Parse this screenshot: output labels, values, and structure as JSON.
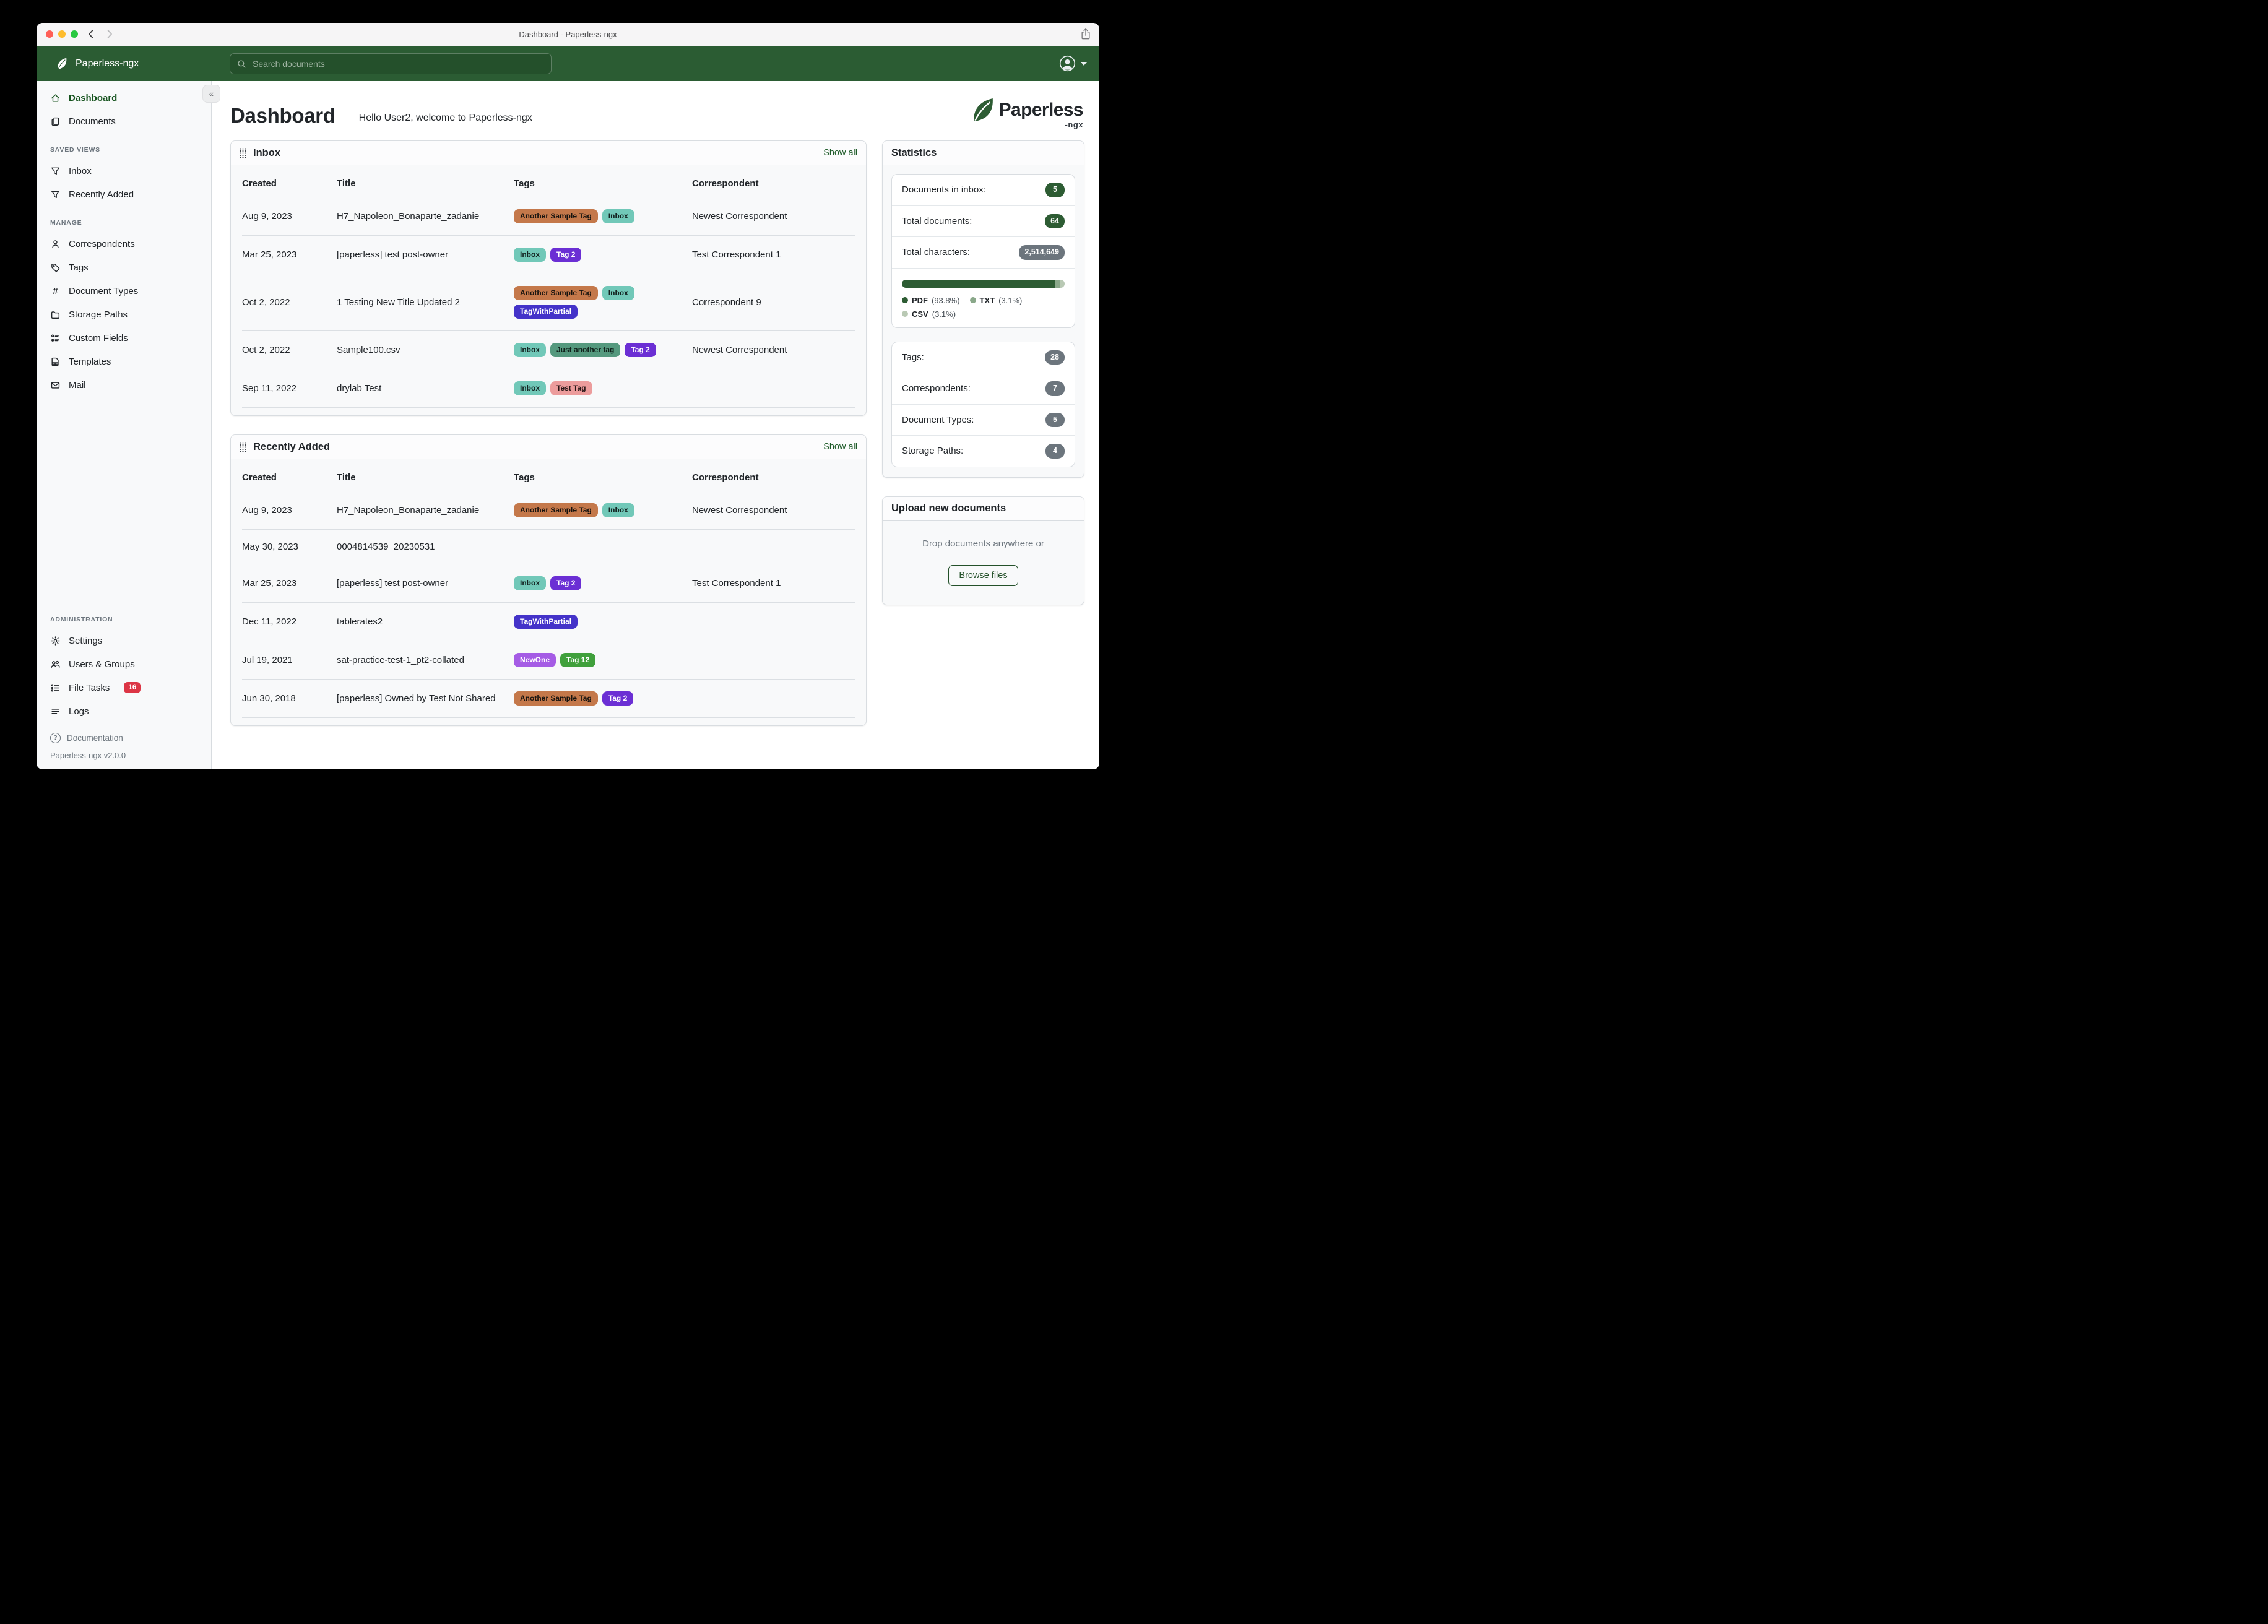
{
  "window": {
    "title": "Dashboard - Paperless-ngx"
  },
  "header": {
    "brand": "Paperless-ngx",
    "search_placeholder": "Search documents"
  },
  "sidebar": {
    "top_items": [
      {
        "label": "Dashboard",
        "icon": "home",
        "active": true
      },
      {
        "label": "Documents",
        "icon": "documents",
        "active": false
      }
    ],
    "sections": [
      {
        "label": "SAVED VIEWS",
        "items": [
          {
            "label": "Inbox",
            "icon": "funnel"
          },
          {
            "label": "Recently Added",
            "icon": "funnel"
          }
        ]
      },
      {
        "label": "MANAGE",
        "items": [
          {
            "label": "Correspondents",
            "icon": "person"
          },
          {
            "label": "Tags",
            "icon": "tag"
          },
          {
            "label": "Document Types",
            "icon": "hash"
          },
          {
            "label": "Storage Paths",
            "icon": "folder"
          },
          {
            "label": "Custom Fields",
            "icon": "fields"
          },
          {
            "label": "Templates",
            "icon": "template"
          },
          {
            "label": "Mail",
            "icon": "mail"
          }
        ]
      },
      {
        "label": "ADMINISTRATION",
        "items": [
          {
            "label": "Settings",
            "icon": "gear"
          },
          {
            "label": "Users & Groups",
            "icon": "users"
          },
          {
            "label": "File Tasks",
            "icon": "tasks",
            "badge": "16"
          },
          {
            "label": "Logs",
            "icon": "logs"
          }
        ]
      }
    ],
    "footer": {
      "documentation": "Documentation",
      "version": "Paperless-ngx v2.0.0"
    }
  },
  "page": {
    "title": "Dashboard",
    "greeting": "Hello User2, welcome to Paperless-ngx"
  },
  "logo": {
    "text": "Paperless",
    "suffix": "-ngx"
  },
  "tags": {
    "Another Sample Tag": {
      "bg": "#c4784a",
      "fg": "#16130f"
    },
    "Inbox": {
      "bg": "#71c8b8",
      "fg": "#132220"
    },
    "Tag 2": {
      "bg": "#6b2fd4",
      "fg": "#ffffff"
    },
    "TagWithPartial": {
      "bg": "#4433c9",
      "fg": "#ffffff"
    },
    "Just another tag": {
      "bg": "#55997e",
      "fg": "#10201a"
    },
    "Test Tag": {
      "bg": "#ec9c9c",
      "fg": "#271616"
    },
    "NewOne": {
      "bg": "#a55ce5",
      "fg": "#ffffff"
    },
    "Tag 12": {
      "bg": "#40a03c",
      "fg": "#ffffff"
    }
  },
  "cards": [
    {
      "title": "Inbox",
      "show_all": "Show all",
      "columns": [
        "Created",
        "Title",
        "Tags",
        "Correspondent"
      ],
      "rows": [
        {
          "created": "Aug 9, 2023",
          "title": "H7_Napoleon_Bonaparte_zadanie",
          "tags": [
            "Another Sample Tag",
            "Inbox"
          ],
          "correspondent": "Newest Correspondent"
        },
        {
          "created": "Mar 25, 2023",
          "title": "[paperless] test post-owner",
          "tags": [
            "Inbox",
            "Tag 2"
          ],
          "correspondent": "Test Correspondent 1"
        },
        {
          "created": "Oct 2, 2022",
          "title": "1 Testing New Title Updated 2",
          "tags": [
            "Another Sample Tag",
            "Inbox",
            "TagWithPartial"
          ],
          "correspondent": "Correspondent 9"
        },
        {
          "created": "Oct 2, 2022",
          "title": "Sample100.csv",
          "tags": [
            "Inbox",
            "Just another tag",
            "Tag 2"
          ],
          "correspondent": "Newest Correspondent"
        },
        {
          "created": "Sep 11, 2022",
          "title": "drylab Test",
          "tags": [
            "Inbox",
            "Test Tag"
          ],
          "correspondent": ""
        }
      ]
    },
    {
      "title": "Recently Added",
      "show_all": "Show all",
      "columns": [
        "Created",
        "Title",
        "Tags",
        "Correspondent"
      ],
      "rows": [
        {
          "created": "Aug 9, 2023",
          "title": "H7_Napoleon_Bonaparte_zadanie",
          "tags": [
            "Another Sample Tag",
            "Inbox"
          ],
          "correspondent": "Newest Correspondent"
        },
        {
          "created": "May 30, 2023",
          "title": "0004814539_20230531",
          "tags": [],
          "correspondent": ""
        },
        {
          "created": "Mar 25, 2023",
          "title": "[paperless] test post-owner",
          "tags": [
            "Inbox",
            "Tag 2"
          ],
          "correspondent": "Test Correspondent 1"
        },
        {
          "created": "Dec 11, 2022",
          "title": "tablerates2",
          "tags": [
            "TagWithPartial"
          ],
          "correspondent": ""
        },
        {
          "created": "Jul 19, 2021",
          "title": "sat-practice-test-1_pt2-collated",
          "tags": [
            "NewOne",
            "Tag 12"
          ],
          "correspondent": ""
        },
        {
          "created": "Jun 30, 2018",
          "title": "[paperless] Owned by Test Not Shared",
          "tags": [
            "Another Sample Tag",
            "Tag 2"
          ],
          "correspondent": ""
        }
      ]
    }
  ],
  "stats": {
    "title": "Statistics",
    "group1": [
      {
        "label": "Documents in inbox:",
        "value": "5",
        "badge": "green"
      },
      {
        "label": "Total documents:",
        "value": "64",
        "badge": "green"
      },
      {
        "label": "Total characters:",
        "value": "2,514,649",
        "badge": "gray"
      }
    ],
    "chart": {
      "type": "stacked-bar",
      "segments": [
        {
          "label": "PDF",
          "pct": "(93.8%)",
          "value": 93.8,
          "color": "#2d5c33"
        },
        {
          "label": "TXT",
          "pct": "(3.1%)",
          "value": 3.1,
          "color": "#8aa88a"
        },
        {
          "label": "CSV",
          "pct": "(3.1%)",
          "value": 3.1,
          "color": "#b9c9b4"
        }
      ]
    },
    "group2": [
      {
        "label": "Tags:",
        "value": "28",
        "badge": "gray"
      },
      {
        "label": "Correspondents:",
        "value": "7",
        "badge": "gray"
      },
      {
        "label": "Document Types:",
        "value": "5",
        "badge": "gray"
      },
      {
        "label": "Storage Paths:",
        "value": "4",
        "badge": "gray"
      }
    ]
  },
  "upload": {
    "title": "Upload new documents",
    "drop_text": "Drop documents anywhere or",
    "button": "Browse files"
  },
  "colors": {
    "header_green": "#2b5c33",
    "accent_green": "#1e5b29",
    "badge_green": "#2d5c33",
    "badge_gray": "#6c757d",
    "file_tasks_red": "#dc3545"
  }
}
